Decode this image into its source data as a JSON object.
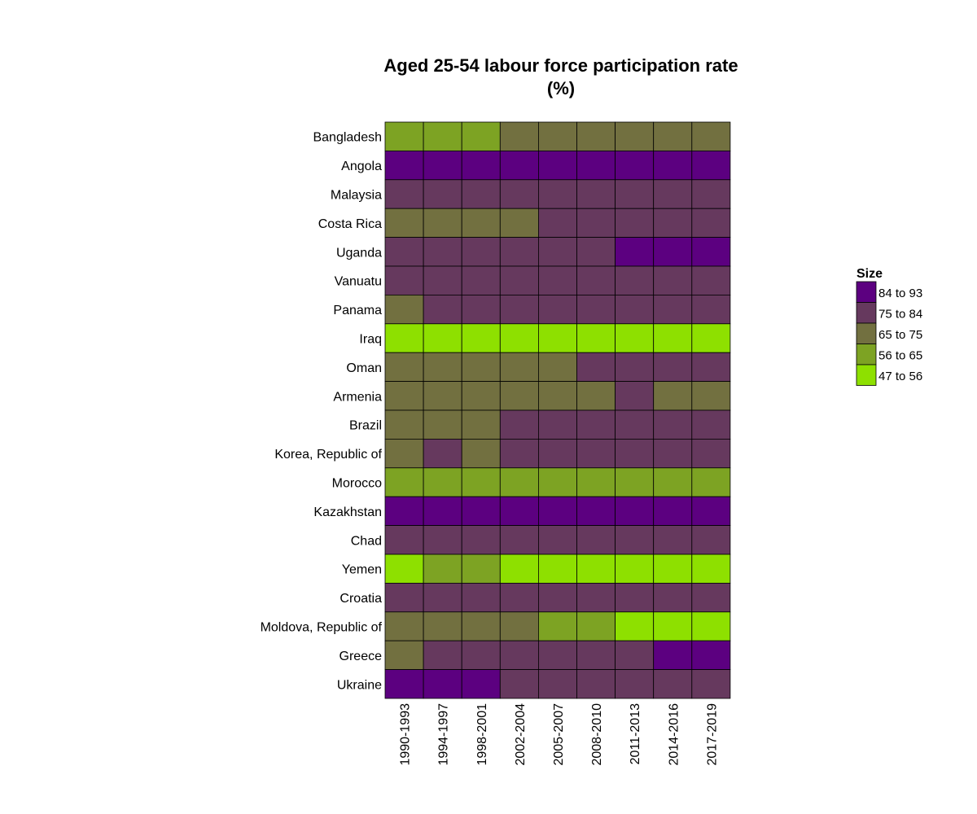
{
  "chart_data": {
    "type": "heatmap",
    "title_line1": "Aged 25-54 labour force participation rate",
    "title_line2": "(%)",
    "x": [
      "1990-1993",
      "1994-1997",
      "1998-2001",
      "2002-2004",
      "2005-2007",
      "2008-2010",
      "2011-2013",
      "2014-2016",
      "2017-2019"
    ],
    "y": [
      "Bangladesh",
      "Angola",
      "Malaysia",
      "Costa Rica",
      "Uganda",
      "Vanuatu",
      "Panama",
      "Iraq",
      "Oman",
      "Armenia",
      "Brazil",
      "Korea, Republic of",
      "Morocco",
      "Kazakhstan",
      "Chad",
      "Yemen",
      "Croatia",
      "Moldova, Republic of",
      "Greece",
      "Ukraine"
    ],
    "cells": [
      [
        "56 to 65",
        "56 to 65",
        "56 to 65",
        "65 to 75",
        "65 to 75",
        "65 to 75",
        "65 to 75",
        "65 to 75",
        "65 to 75"
      ],
      [
        "84 to 93",
        "84 to 93",
        "84 to 93",
        "84 to 93",
        "84 to 93",
        "84 to 93",
        "84 to 93",
        "84 to 93",
        "84 to 93"
      ],
      [
        "75 to 84",
        "75 to 84",
        "75 to 84",
        "75 to 84",
        "75 to 84",
        "75 to 84",
        "75 to 84",
        "75 to 84",
        "75 to 84"
      ],
      [
        "65 to 75",
        "65 to 75",
        "65 to 75",
        "65 to 75",
        "75 to 84",
        "75 to 84",
        "75 to 84",
        "75 to 84",
        "75 to 84"
      ],
      [
        "75 to 84",
        "75 to 84",
        "75 to 84",
        "75 to 84",
        "75 to 84",
        "75 to 84",
        "84 to 93",
        "84 to 93",
        "84 to 93"
      ],
      [
        "75 to 84",
        "75 to 84",
        "75 to 84",
        "75 to 84",
        "75 to 84",
        "75 to 84",
        "75 to 84",
        "75 to 84",
        "75 to 84"
      ],
      [
        "65 to 75",
        "75 to 84",
        "75 to 84",
        "75 to 84",
        "75 to 84",
        "75 to 84",
        "75 to 84",
        "75 to 84",
        "75 to 84"
      ],
      [
        "47 to 56",
        "47 to 56",
        "47 to 56",
        "47 to 56",
        "47 to 56",
        "47 to 56",
        "47 to 56",
        "47 to 56",
        "47 to 56"
      ],
      [
        "65 to 75",
        "65 to 75",
        "65 to 75",
        "65 to 75",
        "65 to 75",
        "75 to 84",
        "75 to 84",
        "75 to 84",
        "75 to 84"
      ],
      [
        "65 to 75",
        "65 to 75",
        "65 to 75",
        "65 to 75",
        "65 to 75",
        "65 to 75",
        "75 to 84",
        "65 to 75",
        "65 to 75"
      ],
      [
        "65 to 75",
        "65 to 75",
        "65 to 75",
        "75 to 84",
        "75 to 84",
        "75 to 84",
        "75 to 84",
        "75 to 84",
        "75 to 84"
      ],
      [
        "65 to 75",
        "75 to 84",
        "65 to 75",
        "75 to 84",
        "75 to 84",
        "75 to 84",
        "75 to 84",
        "75 to 84",
        "75 to 84"
      ],
      [
        "56 to 65",
        "56 to 65",
        "56 to 65",
        "56 to 65",
        "56 to 65",
        "56 to 65",
        "56 to 65",
        "56 to 65",
        "56 to 65"
      ],
      [
        "84 to 93",
        "84 to 93",
        "84 to 93",
        "84 to 93",
        "84 to 93",
        "84 to 93",
        "84 to 93",
        "84 to 93",
        "84 to 93"
      ],
      [
        "75 to 84",
        "75 to 84",
        "75 to 84",
        "75 to 84",
        "75 to 84",
        "75 to 84",
        "75 to 84",
        "75 to 84",
        "75 to 84"
      ],
      [
        "47 to 56",
        "56 to 65",
        "56 to 65",
        "47 to 56",
        "47 to 56",
        "47 to 56",
        "47 to 56",
        "47 to 56",
        "47 to 56"
      ],
      [
        "75 to 84",
        "75 to 84",
        "75 to 84",
        "75 to 84",
        "75 to 84",
        "75 to 84",
        "75 to 84",
        "75 to 84",
        "75 to 84"
      ],
      [
        "65 to 75",
        "65 to 75",
        "65 to 75",
        "65 to 75",
        "56 to 65",
        "56 to 65",
        "47 to 56",
        "47 to 56",
        "47 to 56"
      ],
      [
        "65 to 75",
        "75 to 84",
        "75 to 84",
        "75 to 84",
        "75 to 84",
        "75 to 84",
        "75 to 84",
        "84 to 93",
        "84 to 93"
      ],
      [
        "84 to 93",
        "84 to 93",
        "84 to 93",
        "75 to 84",
        "75 to 84",
        "75 to 84",
        "75 to 84",
        "75 to 84",
        "75 to 84"
      ]
    ],
    "legend": {
      "title": "Size",
      "placement": "right",
      "items": [
        {
          "label": "84 to 93",
          "color": "#5c0080"
        },
        {
          "label": "75 to 84",
          "color": "#66395e"
        },
        {
          "label": "65 to 75",
          "color": "#727040"
        },
        {
          "label": "56 to 65",
          "color": "#7da323"
        },
        {
          "label": "47 to 56",
          "color": "#8ee000"
        }
      ]
    },
    "grid": false
  }
}
